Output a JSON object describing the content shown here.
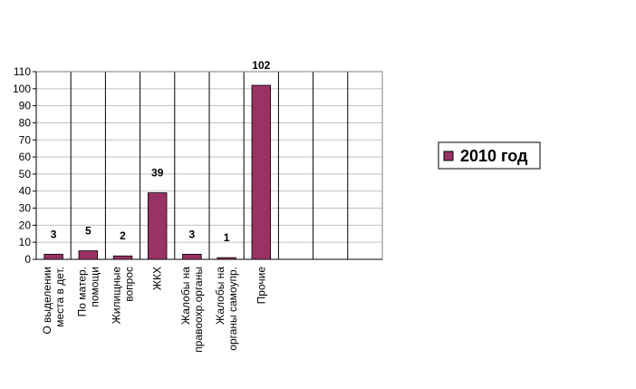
{
  "chart_data": {
    "type": "bar",
    "categories": [
      [
        "О выделении",
        "места в дет."
      ],
      [
        "По матер.",
        "помощи"
      ],
      [
        "Жилищные",
        "вопрос"
      ],
      [
        "ЖКХ"
      ],
      [
        "Жалобы на",
        "правоохр.органы"
      ],
      [
        "Жалобы на",
        "органы самоупр."
      ],
      [
        "Прочие"
      ],
      null,
      null,
      null
    ],
    "series": [
      {
        "name": "2010 год",
        "color": "#993366",
        "values": [
          3,
          5,
          2,
          39,
          3,
          1,
          102,
          null,
          null,
          null
        ]
      }
    ],
    "ylim": [
      0,
      110
    ],
    "yticks": [
      0,
      10,
      20,
      30,
      40,
      50,
      60,
      70,
      80,
      90,
      100,
      110
    ],
    "grid": true,
    "legend": "right"
  }
}
